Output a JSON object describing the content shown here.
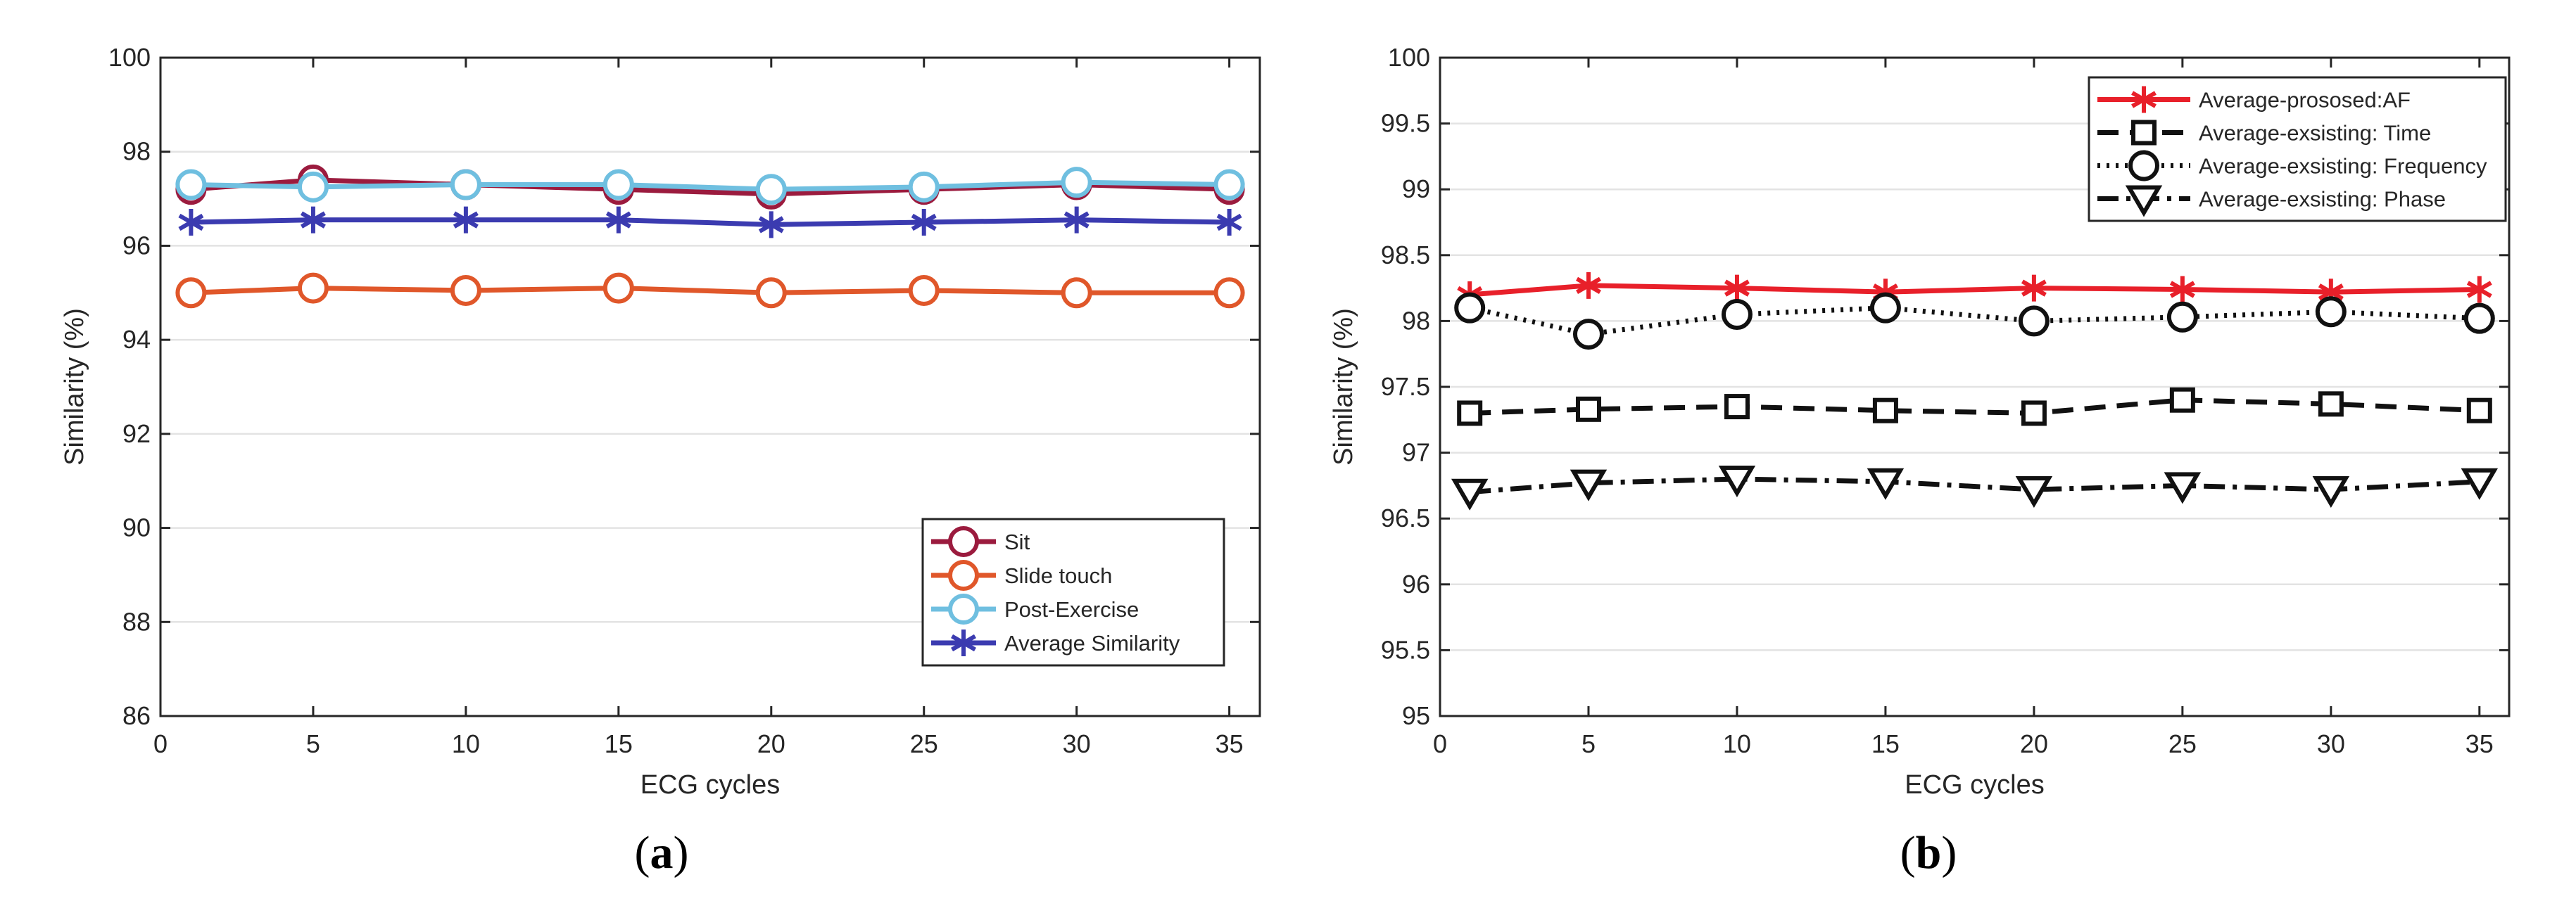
{
  "chart_data": [
    {
      "type": "line",
      "title": "",
      "xlabel": "ECG cycles",
      "ylabel": "Similarity (%)",
      "xlim": [
        0,
        36
      ],
      "ylim": [
        86,
        100
      ],
      "xticks": [
        0,
        5,
        10,
        15,
        20,
        25,
        30,
        35
      ],
      "xtick_labels": [
        "0",
        "5",
        "10",
        "15",
        "20",
        "25",
        "30",
        "35"
      ],
      "yticks": [
        86,
        88,
        90,
        92,
        94,
        96,
        98,
        100
      ],
      "ytick_labels": [
        "86",
        "88",
        "90",
        "92",
        "94",
        "96",
        "98",
        "100"
      ],
      "grid": "horizontal",
      "legend_position": "bottom-right",
      "x": [
        1,
        5,
        10,
        15,
        20,
        25,
        30,
        35
      ],
      "series": [
        {
          "name": "Sit",
          "color": "#9b1b3e",
          "marker": "circle",
          "linestyle": "solid",
          "values": [
            97.2,
            97.4,
            97.3,
            97.2,
            97.1,
            97.2,
            97.3,
            97.2
          ]
        },
        {
          "name": "Slide touch",
          "color": "#e0572a",
          "marker": "circle",
          "linestyle": "solid",
          "values": [
            95.0,
            95.1,
            95.05,
            95.1,
            95.0,
            95.05,
            95.0,
            95.0
          ]
        },
        {
          "name": "Post-Exercise",
          "color": "#6fbfe0",
          "marker": "circle",
          "linestyle": "solid",
          "values": [
            97.3,
            97.25,
            97.3,
            97.3,
            97.2,
            97.25,
            97.35,
            97.3
          ]
        },
        {
          "name": "Average Similarity",
          "color": "#3b3bb0",
          "marker": "star",
          "linestyle": "solid",
          "values": [
            96.5,
            96.55,
            96.55,
            96.55,
            96.45,
            96.5,
            96.55,
            96.5
          ]
        }
      ]
    },
    {
      "type": "line",
      "title": "",
      "xlabel": "ECG cycles",
      "ylabel": "Similarity (%)",
      "xlim": [
        0,
        36
      ],
      "ylim": [
        95,
        100
      ],
      "xticks": [
        0,
        5,
        10,
        15,
        20,
        25,
        30,
        35
      ],
      "xtick_labels": [
        "0",
        "5",
        "10",
        "15",
        "20",
        "25",
        "30",
        "35"
      ],
      "yticks": [
        95,
        95.5,
        96,
        96.5,
        97,
        97.5,
        98,
        98.5,
        99,
        99.5,
        100
      ],
      "ytick_labels": [
        "95",
        "95.5",
        "96",
        "96.5",
        "97",
        "97.5",
        "98",
        "98.5",
        "99",
        "99.5",
        "100"
      ],
      "grid": "horizontal",
      "legend_position": "top-right",
      "x": [
        1,
        5,
        10,
        15,
        20,
        25,
        30,
        35
      ],
      "series": [
        {
          "name": "Average-prososed:AF",
          "color": "#e8202a",
          "marker": "star",
          "linestyle": "solid",
          "values": [
            98.2,
            98.27,
            98.25,
            98.22,
            98.25,
            98.24,
            98.22,
            98.24
          ]
        },
        {
          "name": "Average-exsisting: Time",
          "color": "#111111",
          "marker": "square",
          "linestyle": "dashed",
          "values": [
            97.3,
            97.33,
            97.35,
            97.32,
            97.3,
            97.4,
            97.37,
            97.32
          ]
        },
        {
          "name": "Average-exsisting: Frequency",
          "color": "#111111",
          "marker": "circle",
          "linestyle": "dotted",
          "values": [
            98.1,
            97.9,
            98.05,
            98.1,
            98.0,
            98.03,
            98.07,
            98.02
          ]
        },
        {
          "name": "Average-exsisting: Phase",
          "color": "#111111",
          "marker": "triangle-down",
          "linestyle": "dashdot",
          "values": [
            96.7,
            96.77,
            96.8,
            96.78,
            96.72,
            96.75,
            96.72,
            96.78
          ]
        }
      ]
    }
  ],
  "panel_labels": [
    "a",
    "b"
  ]
}
